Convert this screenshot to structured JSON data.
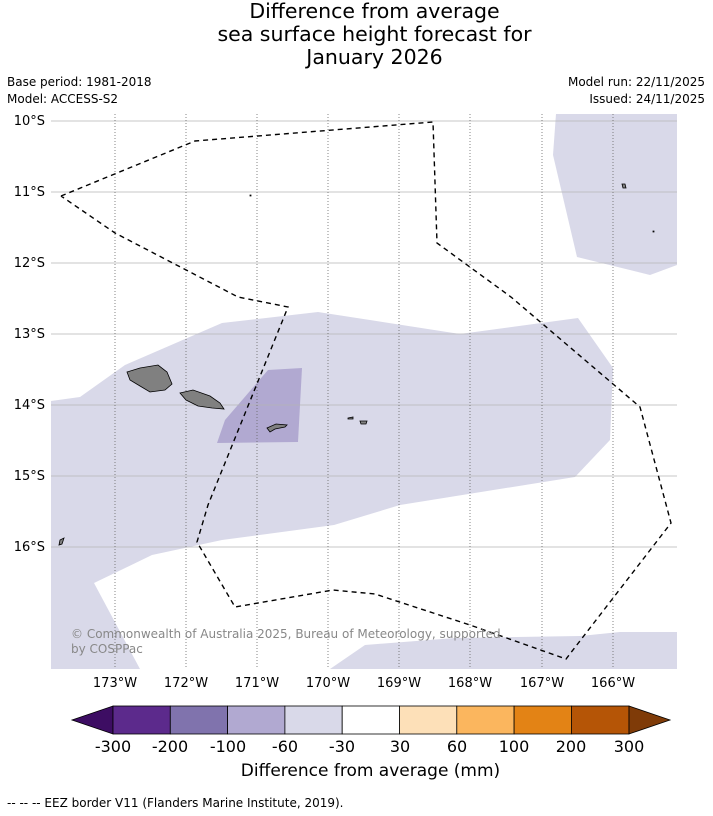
{
  "title": {
    "line1": "Difference from average",
    "line2": "sea surface height forecast for",
    "line3": "January 2026"
  },
  "meta": {
    "base_period": "Base period: 1981-2018",
    "model": "Model: ACCESS-S2",
    "model_run": "Model run: 22/11/2025",
    "issued": "Issued: 24/11/2025"
  },
  "map": {
    "lon_labels": [
      "173°W",
      "172°W",
      "171°W",
      "170°W",
      "169°W",
      "168°W",
      "167°W",
      "166°W"
    ],
    "lat_labels": [
      "10°S",
      "11°S",
      "12°S",
      "13°S",
      "14°S",
      "15°S",
      "16°S"
    ],
    "copyright": "© Commonwealth of Australia 2025, Bureau of Meteorology, supported by COSPPac",
    "copyright_line1": "© Commonwealth of Australia 2025, Bureau of Meteorology, supported",
    "copyright_line2": "by COSPPac",
    "colors": {
      "band_neg60_neg30": "#d9d9e9",
      "band_neg100_neg60": "#b1a9d1",
      "land": "#808080",
      "gridline": "#bbbbbb"
    }
  },
  "colorbar": {
    "label": "Difference from average (mm)",
    "ticks": [
      "-300",
      "-200",
      "-100",
      "-60",
      "-30",
      "30",
      "60",
      "100",
      "200",
      "300"
    ],
    "colors": [
      "#3d0d63",
      "#5c2a8c",
      "#8073ad",
      "#b1a9d1",
      "#d9d9e9",
      "#ffffff",
      "#fde0b8",
      "#fbb65e",
      "#e38315",
      "#b55506",
      "#7f3b08"
    ]
  },
  "footnote": "--  --  -- EEZ border V11 (Flanders Marine Institute, 2019)."
}
